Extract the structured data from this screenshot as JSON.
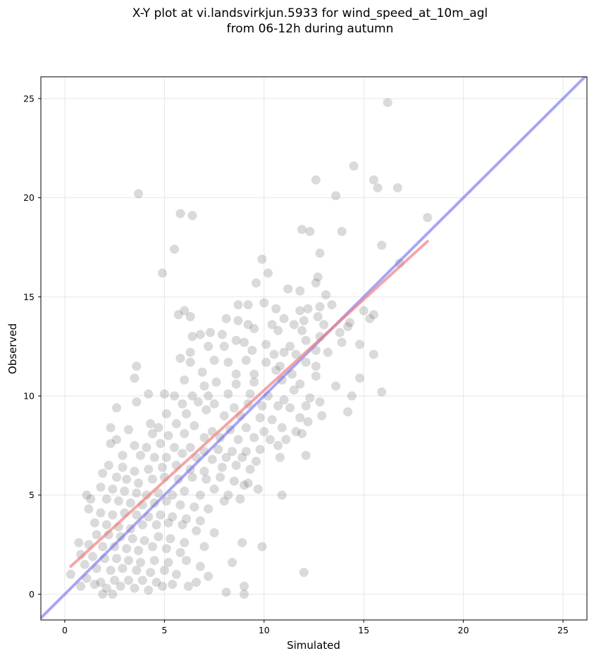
{
  "chart_data": {
    "type": "scatter",
    "title_line1": "X-Y plot at vi.landsvirkjun.5933 for wind_speed_at_10m_agl",
    "title_line2": "from 06-12h during autumn",
    "xlabel": "Simulated",
    "ylabel": "Observed",
    "xlim": [
      -1.2,
      26.2
    ],
    "ylim": [
      -1.3,
      26.1
    ],
    "xticks": [
      0,
      5,
      10,
      15,
      20,
      25
    ],
    "yticks": [
      0,
      5,
      10,
      15,
      20,
      25
    ],
    "grid": true,
    "colors": {
      "points": "#555555",
      "one_to_one_line": "#6b6bf0",
      "fit_line": "#f08080",
      "grid": "#e6e6e6"
    },
    "reference_line": {
      "name": "1:1",
      "x": [
        -1.2,
        26.2
      ],
      "y": [
        -1.2,
        26.2
      ]
    },
    "fit_line": {
      "x": [
        0.3,
        18.2
      ],
      "y": [
        1.4,
        17.8
      ]
    },
    "points": [
      [
        16.2,
        24.8
      ],
      [
        14.5,
        21.6
      ],
      [
        12.6,
        20.9
      ],
      [
        15.5,
        20.9
      ],
      [
        13.6,
        20.1
      ],
      [
        15.7,
        20.5
      ],
      [
        16.7,
        20.5
      ],
      [
        3.7,
        20.2
      ],
      [
        5.8,
        19.2
      ],
      [
        6.4,
        19.1
      ],
      [
        18.2,
        19.0
      ],
      [
        11.9,
        18.4
      ],
      [
        12.3,
        18.3
      ],
      [
        13.9,
        18.3
      ],
      [
        15.9,
        17.6
      ],
      [
        5.5,
        17.4
      ],
      [
        12.8,
        17.2
      ],
      [
        9.9,
        16.9
      ],
      [
        16.8,
        16.7
      ],
      [
        4.9,
        16.2
      ],
      [
        10.2,
        16.2
      ],
      [
        12.7,
        16.0
      ],
      [
        9.6,
        15.7
      ],
      [
        12.6,
        15.7
      ],
      [
        11.2,
        15.4
      ],
      [
        11.8,
        15.3
      ],
      [
        13.1,
        15.1
      ],
      [
        10.0,
        14.7
      ],
      [
        8.7,
        14.6
      ],
      [
        9.2,
        14.6
      ],
      [
        12.8,
        14.5
      ],
      [
        13.4,
        14.6
      ],
      [
        6.0,
        14.3
      ],
      [
        10.6,
        14.4
      ],
      [
        11.8,
        14.3
      ],
      [
        12.2,
        14.4
      ],
      [
        15.5,
        14.1
      ],
      [
        5.7,
        14.1
      ],
      [
        6.3,
        14.0
      ],
      [
        12.7,
        14.0
      ],
      [
        15.0,
        14.3
      ],
      [
        8.1,
        13.9
      ],
      [
        8.7,
        13.8
      ],
      [
        11.0,
        13.9
      ],
      [
        12.0,
        13.8
      ],
      [
        14.3,
        13.7
      ],
      [
        15.3,
        13.9
      ],
      [
        9.2,
        13.6
      ],
      [
        10.4,
        13.6
      ],
      [
        11.5,
        13.6
      ],
      [
        13.0,
        13.6
      ],
      [
        14.2,
        13.5
      ],
      [
        7.3,
        13.2
      ],
      [
        6.8,
        13.1
      ],
      [
        7.9,
        13.1
      ],
      [
        9.5,
        13.4
      ],
      [
        10.7,
        13.3
      ],
      [
        11.9,
        13.3
      ],
      [
        12.8,
        13.0
      ],
      [
        13.8,
        13.2
      ],
      [
        6.4,
        13.0
      ],
      [
        8.6,
        12.8
      ],
      [
        9.0,
        12.7
      ],
      [
        10.1,
        12.6
      ],
      [
        11.3,
        12.5
      ],
      [
        12.1,
        12.8
      ],
      [
        13.9,
        12.7
      ],
      [
        14.8,
        12.6
      ],
      [
        6.3,
        12.2
      ],
      [
        7.2,
        12.5
      ],
      [
        8.0,
        12.5
      ],
      [
        9.4,
        12.3
      ],
      [
        10.5,
        12.1
      ],
      [
        11.0,
        12.2
      ],
      [
        11.6,
        12.1
      ],
      [
        12.6,
        12.3
      ],
      [
        13.2,
        12.2
      ],
      [
        15.5,
        12.1
      ],
      [
        5.8,
        11.9
      ],
      [
        6.3,
        11.7
      ],
      [
        7.5,
        11.8
      ],
      [
        8.2,
        11.7
      ],
      [
        9.1,
        11.8
      ],
      [
        10.1,
        11.7
      ],
      [
        10.8,
        11.5
      ],
      [
        12.1,
        11.7
      ],
      [
        12.6,
        11.5
      ],
      [
        3.6,
        11.5
      ],
      [
        6.9,
        11.2
      ],
      [
        8.6,
        11.1
      ],
      [
        9.5,
        11.1
      ],
      [
        10.6,
        11.3
      ],
      [
        11.4,
        11.1
      ],
      [
        12.6,
        11.0
      ],
      [
        14.8,
        10.9
      ],
      [
        3.5,
        10.9
      ],
      [
        6.0,
        10.8
      ],
      [
        7.0,
        10.5
      ],
      [
        7.6,
        10.7
      ],
      [
        8.6,
        10.6
      ],
      [
        9.5,
        10.7
      ],
      [
        10.9,
        10.8
      ],
      [
        11.8,
        10.6
      ],
      [
        13.6,
        10.5
      ],
      [
        15.9,
        10.2
      ],
      [
        5.0,
        10.1
      ],
      [
        5.5,
        10.0
      ],
      [
        6.4,
        10.0
      ],
      [
        7.2,
        10.0
      ],
      [
        8.2,
        10.1
      ],
      [
        9.3,
        10.1
      ],
      [
        10.2,
        10.0
      ],
      [
        11.0,
        9.8
      ],
      [
        11.5,
        10.3
      ],
      [
        12.3,
        9.9
      ],
      [
        14.4,
        10.0
      ],
      [
        4.2,
        10.1
      ],
      [
        3.6,
        9.7
      ],
      [
        5.9,
        9.6
      ],
      [
        6.7,
        9.7
      ],
      [
        7.5,
        9.6
      ],
      [
        8.5,
        9.4
      ],
      [
        9.2,
        9.6
      ],
      [
        9.9,
        9.5
      ],
      [
        10.7,
        9.5
      ],
      [
        11.3,
        9.4
      ],
      [
        12.1,
        9.5
      ],
      [
        12.8,
        9.7
      ],
      [
        14.2,
        9.2
      ],
      [
        2.6,
        9.4
      ],
      [
        5.1,
        9.1
      ],
      [
        6.1,
        9.1
      ],
      [
        7.1,
        9.3
      ],
      [
        8.0,
        9.0
      ],
      [
        8.8,
        9.0
      ],
      [
        9.8,
        8.9
      ],
      [
        10.4,
        8.8
      ],
      [
        11.8,
        8.9
      ],
      [
        12.9,
        9.0
      ],
      [
        4.3,
        8.6
      ],
      [
        4.7,
        8.4
      ],
      [
        5.6,
        8.6
      ],
      [
        6.5,
        8.5
      ],
      [
        7.4,
        8.2
      ],
      [
        8.3,
        8.3
      ],
      [
        9.1,
        8.4
      ],
      [
        10.0,
        8.2
      ],
      [
        10.9,
        8.4
      ],
      [
        11.6,
        8.2
      ],
      [
        12.2,
        8.7
      ],
      [
        2.3,
        8.4
      ],
      [
        3.2,
        8.3
      ],
      [
        4.4,
        8.1
      ],
      [
        5.2,
        8.0
      ],
      [
        6.0,
        8.1
      ],
      [
        7.0,
        7.9
      ],
      [
        7.8,
        7.9
      ],
      [
        8.7,
        7.8
      ],
      [
        9.5,
        7.9
      ],
      [
        10.3,
        7.8
      ],
      [
        11.1,
        7.8
      ],
      [
        11.9,
        8.1
      ],
      [
        2.6,
        7.8
      ],
      [
        3.5,
        7.5
      ],
      [
        4.1,
        7.4
      ],
      [
        4.8,
        7.6
      ],
      [
        5.5,
        7.4
      ],
      [
        6.3,
        7.4
      ],
      [
        7.0,
        7.2
      ],
      [
        7.7,
        7.3
      ],
      [
        8.4,
        7.2
      ],
      [
        9.1,
        7.2
      ],
      [
        9.8,
        7.3
      ],
      [
        10.7,
        7.5
      ],
      [
        12.1,
        7.0
      ],
      [
        2.3,
        7.6
      ],
      [
        2.9,
        7.0
      ],
      [
        3.8,
        7.0
      ],
      [
        4.5,
        6.9
      ],
      [
        5.1,
        6.9
      ],
      [
        5.9,
        7.1
      ],
      [
        6.6,
        6.9
      ],
      [
        7.4,
        6.8
      ],
      [
        8.1,
        6.9
      ],
      [
        8.9,
        6.9
      ],
      [
        9.6,
        6.7
      ],
      [
        10.8,
        6.9
      ],
      [
        2.2,
        6.5
      ],
      [
        2.9,
        6.4
      ],
      [
        3.5,
        6.2
      ],
      [
        4.2,
        6.3
      ],
      [
        4.9,
        6.4
      ],
      [
        5.6,
        6.5
      ],
      [
        6.3,
        6.3
      ],
      [
        7.0,
        6.2
      ],
      [
        7.9,
        6.4
      ],
      [
        8.6,
        6.5
      ],
      [
        9.3,
        6.3
      ],
      [
        1.9,
        6.1
      ],
      [
        2.6,
        5.9
      ],
      [
        3.1,
        5.8
      ],
      [
        3.7,
        5.6
      ],
      [
        4.4,
        5.8
      ],
      [
        5.0,
        5.9
      ],
      [
        5.7,
        5.8
      ],
      [
        6.4,
        5.9
      ],
      [
        7.1,
        5.8
      ],
      [
        7.8,
        5.9
      ],
      [
        8.5,
        5.7
      ],
      [
        9.2,
        5.6
      ],
      [
        1.8,
        5.4
      ],
      [
        2.4,
        5.3
      ],
      [
        3.0,
        5.2
      ],
      [
        3.6,
        5.1
      ],
      [
        4.1,
        5.0
      ],
      [
        4.7,
        5.1
      ],
      [
        5.4,
        5.0
      ],
      [
        6.0,
        5.2
      ],
      [
        6.8,
        5.0
      ],
      [
        7.5,
        5.3
      ],
      [
        8.2,
        5.0
      ],
      [
        9.0,
        5.5
      ],
      [
        9.7,
        5.3
      ],
      [
        10.9,
        5.0
      ],
      [
        1.1,
        5.0
      ],
      [
        1.3,
        4.8
      ],
      [
        2.1,
        4.8
      ],
      [
        2.7,
        4.7
      ],
      [
        3.3,
        4.6
      ],
      [
        3.9,
        4.5
      ],
      [
        4.5,
        4.6
      ],
      [
        5.1,
        4.7
      ],
      [
        5.8,
        4.5
      ],
      [
        6.5,
        4.4
      ],
      [
        7.2,
        4.3
      ],
      [
        8.0,
        4.7
      ],
      [
        8.8,
        4.8
      ],
      [
        1.2,
        4.3
      ],
      [
        1.8,
        4.1
      ],
      [
        2.4,
        4.0
      ],
      [
        3.0,
        4.1
      ],
      [
        3.6,
        4.0
      ],
      [
        4.2,
        3.9
      ],
      [
        4.8,
        4.0
      ],
      [
        5.4,
        3.9
      ],
      [
        6.1,
        3.8
      ],
      [
        6.8,
        3.7
      ],
      [
        1.5,
        3.6
      ],
      [
        2.1,
        3.5
      ],
      [
        2.7,
        3.4
      ],
      [
        3.3,
        3.3
      ],
      [
        3.9,
        3.5
      ],
      [
        4.6,
        3.5
      ],
      [
        5.2,
        3.6
      ],
      [
        5.9,
        3.5
      ],
      [
        6.6,
        3.2
      ],
      [
        7.5,
        3.1
      ],
      [
        1.6,
        3.0
      ],
      [
        2.2,
        3.0
      ],
      [
        2.8,
        2.9
      ],
      [
        3.4,
        2.8
      ],
      [
        4.0,
        2.7
      ],
      [
        4.7,
        2.9
      ],
      [
        5.3,
        2.8
      ],
      [
        6.0,
        2.6
      ],
      [
        7.0,
        2.4
      ],
      [
        8.9,
        2.6
      ],
      [
        9.9,
        2.4
      ],
      [
        0.7,
        2.6
      ],
      [
        1.2,
        2.5
      ],
      [
        1.9,
        2.4
      ],
      [
        2.5,
        2.4
      ],
      [
        3.1,
        2.3
      ],
      [
        3.7,
        2.2
      ],
      [
        4.4,
        2.4
      ],
      [
        5.1,
        2.3
      ],
      [
        5.8,
        2.1
      ],
      [
        0.8,
        2.0
      ],
      [
        1.4,
        1.9
      ],
      [
        2.0,
        1.8
      ],
      [
        2.6,
        1.8
      ],
      [
        3.2,
        1.7
      ],
      [
        3.8,
        1.6
      ],
      [
        4.5,
        1.7
      ],
      [
        5.2,
        1.6
      ],
      [
        6.1,
        1.7
      ],
      [
        6.8,
        1.4
      ],
      [
        8.4,
        1.6
      ],
      [
        1.0,
        1.5
      ],
      [
        1.6,
        1.3
      ],
      [
        2.3,
        1.2
      ],
      [
        2.9,
        1.3
      ],
      [
        3.6,
        1.2
      ],
      [
        4.3,
        1.1
      ],
      [
        5.0,
        1.2
      ],
      [
        5.6,
        1.0
      ],
      [
        0.3,
        1.0
      ],
      [
        1.1,
        0.8
      ],
      [
        1.8,
        0.6
      ],
      [
        2.5,
        0.7
      ],
      [
        3.2,
        0.7
      ],
      [
        3.9,
        0.7
      ],
      [
        4.6,
        0.6
      ],
      [
        5.4,
        0.5
      ],
      [
        6.2,
        0.4
      ],
      [
        7.2,
        0.9
      ],
      [
        0.8,
        0.4
      ],
      [
        1.5,
        0.5
      ],
      [
        2.1,
        0.3
      ],
      [
        2.8,
        0.4
      ],
      [
        3.5,
        0.3
      ],
      [
        4.2,
        0.2
      ],
      [
        4.9,
        0.4
      ],
      [
        6.6,
        0.6
      ],
      [
        1.9,
        0.0
      ],
      [
        2.4,
        0.0
      ],
      [
        8.1,
        0.1
      ],
      [
        9.0,
        0.0
      ],
      [
        9.0,
        0.4
      ],
      [
        12.0,
        1.1
      ]
    ]
  }
}
